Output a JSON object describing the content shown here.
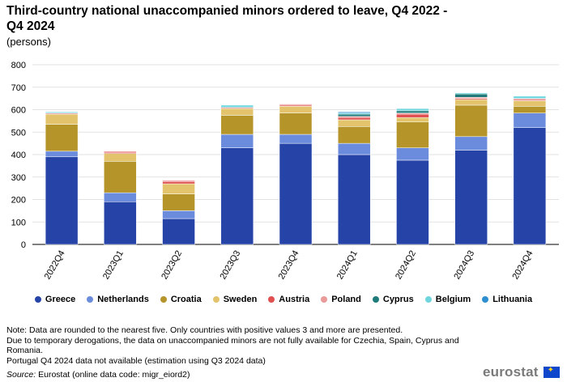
{
  "header": {
    "title": "Third-country national unaccompanied minors ordered to leave, Q4 2022 - Q4 2024",
    "subtitle": "(persons)"
  },
  "chart_data": {
    "type": "bar",
    "stacked": true,
    "categories": [
      "2022Q4",
      "2023Q1",
      "2023Q2",
      "2023Q3",
      "2023Q4",
      "2024Q1",
      "2024Q2",
      "2024Q3",
      "2024Q4"
    ],
    "ylim": [
      0,
      800
    ],
    "yticks": [
      0,
      100,
      200,
      300,
      400,
      500,
      600,
      700,
      800
    ],
    "grid": true,
    "legend_position": "bottom",
    "series": [
      {
        "name": "Greece",
        "color": "#2644a8",
        "values": [
          390,
          190,
          115,
          430,
          450,
          400,
          375,
          420,
          520
        ]
      },
      {
        "name": "Netherlands",
        "color": "#6b8cdc",
        "values": [
          25,
          40,
          35,
          60,
          40,
          50,
          55,
          60,
          65
        ]
      },
      {
        "name": "Croatia",
        "color": "#b5952a",
        "values": [
          120,
          140,
          75,
          85,
          95,
          75,
          115,
          140,
          30
        ]
      },
      {
        "name": "Sweden",
        "color": "#e3c46c",
        "values": [
          45,
          35,
          45,
          30,
          30,
          30,
          20,
          25,
          25
        ]
      },
      {
        "name": "Austria",
        "color": "#e05050",
        "values": [
          0,
          5,
          10,
          0,
          5,
          10,
          15,
          5,
          5
        ]
      },
      {
        "name": "Poland",
        "color": "#eb9a9a",
        "values": [
          5,
          5,
          5,
          5,
          5,
          5,
          5,
          5,
          5
        ]
      },
      {
        "name": "Cyprus",
        "color": "#1f7a7a",
        "values": [
          0,
          0,
          0,
          0,
          0,
          10,
          10,
          15,
          0
        ]
      },
      {
        "name": "Belgium",
        "color": "#6fd6dd",
        "values": [
          5,
          0,
          0,
          10,
          0,
          5,
          10,
          5,
          10
        ]
      },
      {
        "name": "Lithuania",
        "color": "#2d8fd1",
        "values": [
          0,
          0,
          0,
          0,
          0,
          5,
          0,
          0,
          0
        ]
      }
    ]
  },
  "footer": {
    "note_lines": [
      "Note: Data are rounded to the nearest five. Only countries with positive values 3 and more are presented.",
      "Due to temporary derogations, the data on unaccompanied minors are not fully available for Czechia, Spain, Cyprus and Romania.",
      "Portugal Q4 2024 data not available (estimation using Q3 2024 data)"
    ],
    "source_label": "Source:",
    "source_text": "Eurostat (online data code: migr_eiord2)",
    "logo_text": "eurostat"
  }
}
